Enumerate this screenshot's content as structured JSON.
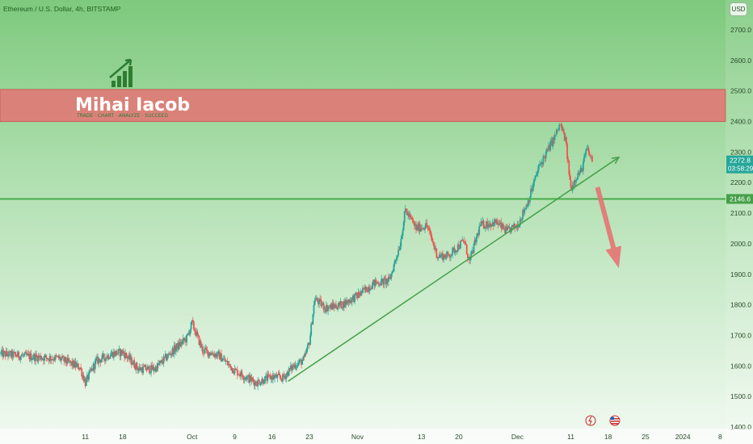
{
  "chart_data": {
    "type": "candlestick",
    "title": "Ethereum / U.S. Dollar, 4h, BITSTAMP",
    "currency_button": "USD",
    "watermark": {
      "name": "Mihai Iacob",
      "tagline": "TRADE · CHART · ANALYZE · SUCCEED"
    },
    "y_ticks": [
      1400.0,
      1500.0,
      1600.0,
      1700.0,
      1800.0,
      1900.0,
      2000.0,
      2100.0,
      2200.0,
      2300.0,
      2400.0,
      2500.0,
      2600.0,
      2700.0
    ],
    "ylim": [
      1400,
      2740
    ],
    "x_ticks": [
      "11",
      "18",
      "Oct",
      "9",
      "16",
      "23",
      "Nov",
      "13",
      "20",
      "Dec",
      "11",
      "18",
      "25",
      "2024",
      "8"
    ],
    "x_tick_dates": [
      "2023-09-11",
      "2023-09-18",
      "2023-10-01",
      "2023-10-09",
      "2023-10-16",
      "2023-10-23",
      "2023-11-01",
      "2023-11-13",
      "2023-11-20",
      "2023-12-01",
      "2023-12-11",
      "2023-12-18",
      "2023-12-25",
      "2024-01-01",
      "2024-01-08"
    ],
    "xlim": [
      "2023-08-26",
      "2024-01-09"
    ],
    "price_path": [
      [
        "2023-08-26",
        1640
      ],
      [
        "2023-09-01",
        1630
      ],
      [
        "2023-09-06",
        1625
      ],
      [
        "2023-09-10",
        1595
      ],
      [
        "2023-09-11",
        1545
      ],
      [
        "2023-09-13",
        1615
      ],
      [
        "2023-09-16",
        1640
      ],
      [
        "2023-09-18",
        1645
      ],
      [
        "2023-09-21",
        1590
      ],
      [
        "2023-09-24",
        1590
      ],
      [
        "2023-09-28",
        1660
      ],
      [
        "2023-09-30",
        1690
      ],
      [
        "2023-10-01",
        1740
      ],
      [
        "2023-10-03",
        1650
      ],
      [
        "2023-10-06",
        1635
      ],
      [
        "2023-10-09",
        1585
      ],
      [
        "2023-10-11",
        1565
      ],
      [
        "2023-10-13",
        1545
      ],
      [
        "2023-10-16",
        1565
      ],
      [
        "2023-10-18",
        1560
      ],
      [
        "2023-10-20",
        1600
      ],
      [
        "2023-10-22",
        1620
      ],
      [
        "2023-10-23",
        1680
      ],
      [
        "2023-10-24",
        1820
      ],
      [
        "2023-10-26",
        1790
      ],
      [
        "2023-10-29",
        1800
      ],
      [
        "2023-11-01",
        1830
      ],
      [
        "2023-11-04",
        1870
      ],
      [
        "2023-11-07",
        1880
      ],
      [
        "2023-11-09",
        2000
      ],
      [
        "2023-11-10",
        2110
      ],
      [
        "2023-11-12",
        2050
      ],
      [
        "2023-11-14",
        2060
      ],
      [
        "2023-11-16",
        1960
      ],
      [
        "2023-11-18",
        1960
      ],
      [
        "2023-11-21",
        2010
      ],
      [
        "2023-11-22",
        1940
      ],
      [
        "2023-11-24",
        2060
      ],
      [
        "2023-11-27",
        2070
      ],
      [
        "2023-11-29",
        2040
      ],
      [
        "2023-12-01",
        2060
      ],
      [
        "2023-12-03",
        2140
      ],
      [
        "2023-12-05",
        2250
      ],
      [
        "2023-12-08",
        2350
      ],
      [
        "2023-12-09",
        2390
      ],
      [
        "2023-12-10",
        2340
      ],
      [
        "2023-12-11",
        2180
      ],
      [
        "2023-12-12",
        2220
      ],
      [
        "2023-12-13",
        2240
      ],
      [
        "2023-12-14",
        2310
      ],
      [
        "2023-12-15",
        2272.8
      ]
    ],
    "last_price": "2272.8",
    "countdown": "03:58:29",
    "levels": [
      {
        "name": "support",
        "price": 2146.6,
        "label": "2146.6",
        "color": "#4caf50"
      }
    ],
    "zones": [
      {
        "name": "resistance-zone",
        "low": 2400,
        "high": 2505,
        "color": "#e57373"
      }
    ],
    "trendline": {
      "from": [
        "2023-10-19",
        1550
      ],
      "to": [
        "2023-12-20",
        2283
      ],
      "color": "#43a047"
    },
    "forecast_arrow": {
      "from": [
        "2023-12-16",
        2185
      ],
      "to": [
        "2023-12-20",
        1920
      ],
      "color": "#e57373"
    },
    "colors": {
      "up": "#26a69a",
      "down": "#ef5350",
      "background_top": "#7dc97d",
      "background_bottom": "#f2faf2"
    },
    "grid": false
  }
}
